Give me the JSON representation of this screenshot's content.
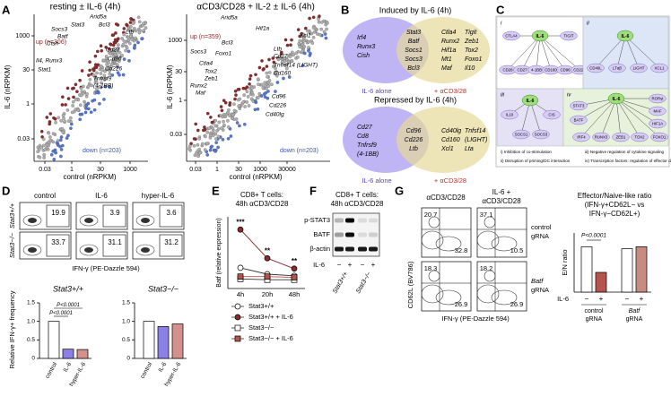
{
  "panel_labels": [
    "A",
    "B",
    "C",
    "D",
    "E",
    "F",
    "G"
  ],
  "a": {
    "plots": [
      {
        "title": "resting ± IL-6 (4h)",
        "x_label": "control (nRPKM)",
        "y_label": "IL-6 (nRPKM)",
        "x_ticks": [
          "0.03",
          "1",
          "30",
          "1000"
        ],
        "y_ticks": [
          "1000",
          "30",
          "1",
          "0.03"
        ],
        "up": "up (n=306)",
        "down": "down (n=203)",
        "genes": [
          "Arid5a",
          "Stat3",
          "Bcl3",
          "Socs3",
          "Batf",
          "Cish",
          "Il4, Runx3",
          "Stat1",
          "Ltb",
          "Cd27",
          "Cd96",
          "Cd226",
          "Tnfrsf9",
          "(4-1BB)"
        ]
      },
      {
        "title": "αCD3/CD28 + IL-2 ± IL-6 (4h)",
        "x_label": "control (nRPKM)",
        "y_label": "IL-6 (nRPKM)",
        "x_ticks": [
          "0.03",
          "1",
          "30",
          "1000",
          "30000"
        ],
        "y_ticks": [
          "1000",
          "30",
          "1",
          "0.03"
        ],
        "up": "up (n=359)",
        "down": "down (n=203)",
        "genes": [
          "Arid5a",
          "Hif1a",
          "Xcl1",
          "Socs3",
          "Bcl3",
          "Foxo1",
          "Ctla4",
          "Tox2",
          "Zeb1",
          "Runx2",
          "Maf",
          "Ltb",
          "Cd27",
          "Tnfrsf14 (LIGHT)",
          "Cd160",
          "Cd96",
          "Cd226",
          "Cd40lg"
        ]
      }
    ]
  },
  "b": {
    "induced": {
      "title": "Induced by IL-6 (4h)",
      "left": [
        "Irf4",
        "Runx3",
        "Cish"
      ],
      "overlap": [
        "Stat3",
        "Batf",
        "Socs1",
        "Socs3",
        "Bcl3"
      ],
      "right": [
        "Ctla4",
        "Runx2",
        "Hif1a",
        "Mt1",
        "Maf",
        "Tigit",
        "Zeb1",
        "Tox2",
        "Foxo1",
        "Il10"
      ]
    },
    "repressed": {
      "title": "Repressed by IL-6 (4h)",
      "left": [
        "Cd27",
        "Cd8",
        "Tnfrsf9",
        "(4-1BB)"
      ],
      "overlap": [
        "Cd96",
        "Cd226",
        "Ltb"
      ],
      "right": [
        "Cd40lg",
        "Cd160",
        "Xcl1",
        "Tnfsf14",
        "(LIGHT)",
        "Lta"
      ]
    },
    "labels": [
      "IL-6 alone",
      "+ αCD3/28"
    ]
  },
  "c": {
    "quadrants": [
      {
        "numeral": "i",
        "hub": "IL-6",
        "targets": [
          "CTLA4",
          "TIGIT",
          "CD28",
          "CD27",
          "4-1BB",
          "CD160",
          "CD96",
          "CD226"
        ]
      },
      {
        "numeral": "ii",
        "hub": "IL-6",
        "targets": [
          "CD40L",
          "LTαβ",
          "LIGHT",
          "XCL1"
        ]
      },
      {
        "numeral": "iii",
        "hub": "IL-6",
        "targets": [
          "IL10",
          "SOCS1",
          "SOCS3",
          "CIS"
        ]
      },
      {
        "numeral": "iv",
        "hub": "IL-6",
        "targets": [
          "RORγt",
          "MAF",
          "HIF1A",
          "STAT3",
          "BATF",
          "IRF4",
          "RUNX3",
          "ZEB1",
          "TOX2",
          "FOXO1"
        ]
      }
    ],
    "legend": [
      "i) Inhibition of co-stimulation",
      "ii) Disruption of priming/DC interaction",
      "iii) Negative regulation of cytokine signaling",
      "iv) Transcription factors: regulation of effector differentiation"
    ]
  },
  "d": {
    "flow": {
      "columns": [
        "control",
        "IL-6",
        "hyper-IL-6"
      ],
      "rows": [
        "Stat3+/+",
        "Stat3−/−"
      ],
      "percentages": [
        [
          19.9,
          3.9,
          3.6
        ],
        [
          33.7,
          31.1,
          31.2
        ]
      ],
      "x_label": "IFN-γ (PE-Dazzle 594)"
    },
    "bars": {
      "y_label": "Relative IFN-γ+ frequency",
      "ylim": [
        0,
        1.5
      ],
      "yticks": [
        0,
        0.5,
        {
          "value": 1,
          "label": "1.0"
        },
        1.5
      ],
      "categories": [
        "control",
        "IL-6",
        "hyper-IL-6"
      ],
      "colors": [
        "#ffffff",
        "#8c7fe6",
        "#d4908a"
      ],
      "panels": [
        {
          "title": "Stat3+/+",
          "values": [
            1.0,
            0.25,
            0.24
          ],
          "annotations": [
            "P<0.0001",
            "P<0.0001"
          ]
        },
        {
          "title": "Stat3−/−",
          "values": [
            1.0,
            0.86,
            0.93
          ]
        }
      ]
    }
  },
  "e": {
    "title": [
      "CD8+ T cells:",
      "48h αCD3/CD28"
    ],
    "y_label": "Batf (relative expression)",
    "categories": [
      "4h",
      "20h",
      "48h"
    ],
    "ylim": [
      0,
      4.5
    ],
    "series": [
      {
        "name": "Stat3+/+",
        "values": [
          1.3,
          0.9,
          0.8
        ],
        "marker": "circle",
        "color": "#ffffff"
      },
      {
        "name": "Stat3+/+ + IL-6",
        "values": [
          3.7,
          1.9,
          1.25
        ],
        "marker": "circle",
        "color": "#8b2a2a"
      },
      {
        "name": "Stat3−/−",
        "values": [
          0.6,
          0.55,
          0.55
        ],
        "marker": "square",
        "color": "#ffffff"
      },
      {
        "name": "Stat3−/− + IL-6",
        "values": [
          0.75,
          0.75,
          0.7
        ],
        "marker": "square",
        "color": "#b5544e"
      }
    ],
    "annotations": [
      "***",
      "**",
      "**"
    ]
  },
  "f": {
    "title": [
      "CD8+ T cells:",
      "48h αCD3/CD28"
    ],
    "bands": [
      "p-STAT3",
      "BATF",
      "β-actin"
    ],
    "treatment": "IL-6",
    "signs": [
      "−",
      "+",
      "−",
      "+"
    ],
    "genotypes": [
      "Stat3+/+",
      "Stat3−/−"
    ]
  },
  "g": {
    "flow": {
      "columns": [
        [
          "αCD3/CD28"
        ],
        [
          "IL-6 +",
          "αCD3/CD28"
        ]
      ],
      "rows": [
        [
          "control",
          "gRNA"
        ],
        [
          "Batf",
          "gRNA"
        ]
      ],
      "percentages": [
        [
          [
            20.7,
            32.8
          ],
          [
            37.1,
            10.5
          ]
        ],
        [
          [
            18.3,
            26.9
          ],
          [
            18.2,
            26.9
          ]
        ]
      ],
      "y_label": "CD62L (BV786)",
      "x_label": "IFN-γ (PE-Dazzle 594)"
    },
    "bars": {
      "title": [
        "Effector/Naive-like ratio",
        "(IFN-γ+CD62L− vs",
        "IFN-γ−CD62L+)"
      ],
      "y_label": "E/N ratio",
      "ylim": [
        0,
        3
      ],
      "treatment": "IL-6",
      "signs": [
        "−",
        "+",
        "−",
        "+"
      ],
      "groups": [
        [
          "control",
          "gRNA"
        ],
        [
          "Batf",
          "gRNA"
        ]
      ],
      "values": [
        2.3,
        1.0,
        2.2,
        2.3
      ],
      "colors": [
        "#ffffff",
        "#b5544e",
        "#ffffff",
        "#c98a80"
      ],
      "annotation": "P<0.0001"
    }
  }
}
